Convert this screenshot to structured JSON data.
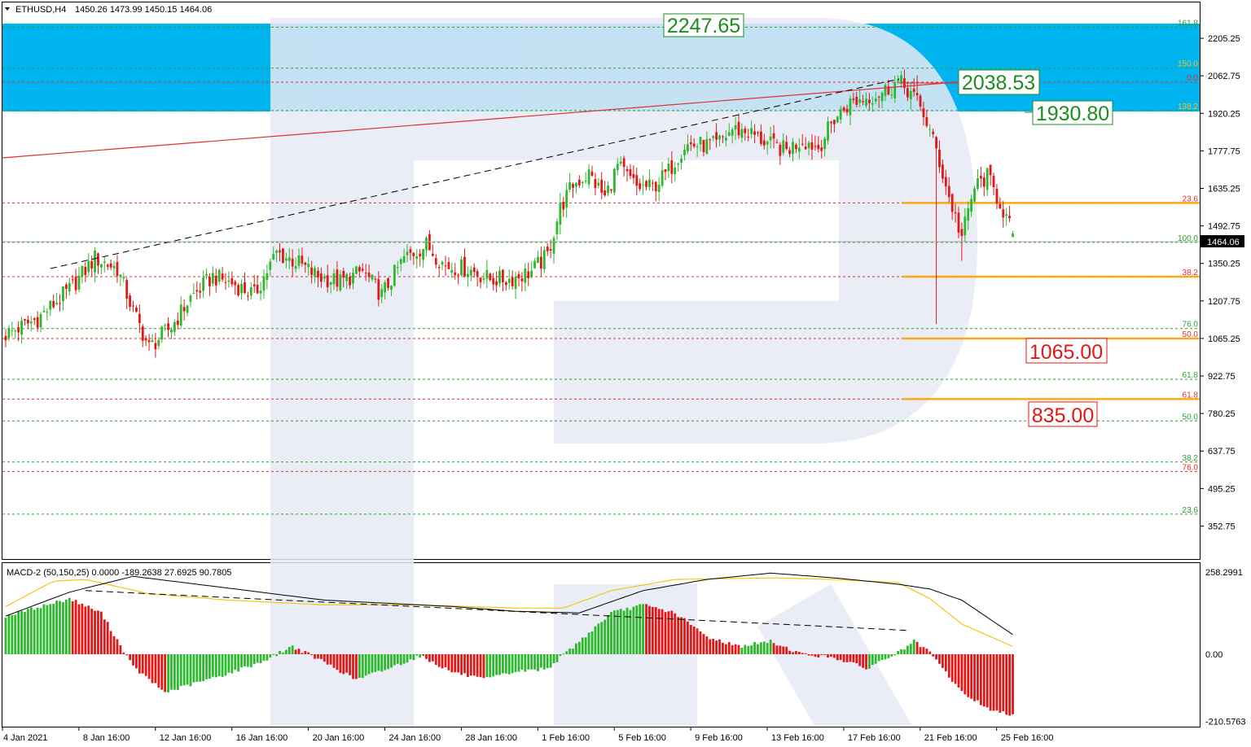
{
  "header": {
    "symbol": "ETHUSD,H4",
    "ohlc": "1450.26 1473.99 1450.15 1464.06"
  },
  "macd_header": "MACD-2 (50,150,25) 0.0000 -189.2638 27.6925 90.7805",
  "price_axis": [
    "2205.25",
    "2062.75",
    "1920.25",
    "1777.75",
    "1635.25",
    "1492.75",
    "1350.25",
    "1207.75",
    "1065.25",
    "922.75",
    "780.25",
    "637.75",
    "495.25",
    "352.75"
  ],
  "current_price": "1464.06",
  "macd_axis": [
    "258.2991",
    "0.00",
    "-210.5763"
  ],
  "time_axis": [
    "4 Jan 2021",
    "8 Jan 16:00",
    "12 Jan 16:00",
    "16 Jan 16:00",
    "20 Jan 16:00",
    "24 Jan 16:00",
    "28 Jan 16:00",
    "1 Feb 16:00",
    "5 Feb 16:00",
    "9 Feb 16:00",
    "13 Feb 16:00",
    "17 Feb 16:00",
    "21 Feb 16:00",
    "25 Feb 16:00"
  ],
  "callouts": {
    "target_high": "2247.65",
    "resistance_1": "2038.53",
    "resistance_2": "1930.80",
    "support_1": "1065.00",
    "support_2": "835.00"
  },
  "fib_labels": {
    "f1618": "161.8",
    "f150": "150.0",
    "f00": "0.0",
    "f1382": "138.2",
    "f236a": "23.6",
    "f1000": "100.0",
    "f382a": "38.2",
    "f760a": "76.0",
    "f500a": "50.0",
    "f618a": "61.8",
    "f618b": "61.8",
    "f500b": "50.0",
    "f382b": "38.2",
    "f760b": "76.0",
    "f236b": "23.6"
  },
  "colors": {
    "zone": "#00b4f0",
    "bull": "#2db82d",
    "bear": "#e01818",
    "green_label": "#1e8c1e",
    "red_label": "#e01818",
    "orange": "#ffa500",
    "signal": "#f5c518"
  },
  "chart_data": {
    "type": "candlestick",
    "instrument": "ETHUSD",
    "timeframe": "H4",
    "ylim": [
      280,
      2300
    ],
    "zone": [
      1930.8,
      2247.65
    ],
    "fib_levels_green": [
      {
        "label": "161.8",
        "price": 2247.65
      },
      {
        "label": "150.0",
        "price": 2092
      },
      {
        "label": "138.2",
        "price": 1930.8
      },
      {
        "label": "100.0",
        "price": 1430
      },
      {
        "label": "76.0",
        "price": 1103
      },
      {
        "label": "61.8",
        "price": 910
      },
      {
        "label": "50.0",
        "price": 752
      },
      {
        "label": "38.2",
        "price": 596
      },
      {
        "label": "23.6",
        "price": 398
      }
    ],
    "fib_levels_red": [
      {
        "label": "0.0",
        "price": 2038.53
      },
      {
        "label": "23.6",
        "price": 1580
      },
      {
        "label": "38.2",
        "price": 1300
      },
      {
        "label": "50.0",
        "price": 1065
      },
      {
        "label": "61.8",
        "price": 835
      },
      {
        "label": "76.0",
        "price": 560
      }
    ],
    "close_path": [
      [
        0,
        1080
      ],
      [
        10,
        1140
      ],
      [
        20,
        1250
      ],
      [
        28,
        1370
      ],
      [
        35,
        1330
      ],
      [
        40,
        1170
      ],
      [
        45,
        1030
      ],
      [
        52,
        1110
      ],
      [
        58,
        1220
      ],
      [
        65,
        1300
      ],
      [
        72,
        1270
      ],
      [
        78,
        1230
      ],
      [
        85,
        1390
      ],
      [
        92,
        1350
      ],
      [
        98,
        1300
      ],
      [
        105,
        1280
      ],
      [
        112,
        1320
      ],
      [
        118,
        1230
      ],
      [
        125,
        1370
      ],
      [
        132,
        1420
      ],
      [
        138,
        1340
      ],
      [
        145,
        1330
      ],
      [
        152,
        1290
      ],
      [
        158,
        1290
      ],
      [
        165,
        1320
      ],
      [
        170,
        1380
      ],
      [
        174,
        1560
      ],
      [
        178,
        1650
      ],
      [
        183,
        1690
      ],
      [
        188,
        1600
      ],
      [
        192,
        1720
      ],
      [
        198,
        1640
      ],
      [
        203,
        1640
      ],
      [
        208,
        1700
      ],
      [
        213,
        1800
      ],
      [
        218,
        1800
      ],
      [
        223,
        1800
      ],
      [
        228,
        1860
      ],
      [
        233,
        1850
      ],
      [
        240,
        1800
      ],
      [
        245,
        1780
      ],
      [
        250,
        1820
      ],
      [
        255,
        1790
      ],
      [
        260,
        1900
      ],
      [
        265,
        1960
      ],
      [
        270,
        1980
      ],
      [
        275,
        2000
      ],
      [
        280,
        2040
      ],
      [
        284,
        2000
      ],
      [
        288,
        1920
      ],
      [
        292,
        1780
      ],
      [
        296,
        1600
      ],
      [
        300,
        1450
      ],
      [
        304,
        1640
      ],
      [
        308,
        1680
      ],
      [
        312,
        1580
      ],
      [
        316,
        1464
      ]
    ]
  },
  "macd_data": {
    "ylim": [
      -210.5763,
      258.2991
    ],
    "hist_path": [
      [
        0,
        120
      ],
      [
        20,
        175
      ],
      [
        30,
        130
      ],
      [
        40,
        -40
      ],
      [
        50,
        -120
      ],
      [
        60,
        -90
      ],
      [
        70,
        -60
      ],
      [
        80,
        -25
      ],
      [
        90,
        25
      ],
      [
        100,
        -25
      ],
      [
        110,
        -80
      ],
      [
        120,
        -45
      ],
      [
        130,
        -5
      ],
      [
        140,
        -55
      ],
      [
        150,
        -80
      ],
      [
        160,
        -55
      ],
      [
        170,
        -45
      ],
      [
        180,
        40
      ],
      [
        190,
        130
      ],
      [
        200,
        155
      ],
      [
        210,
        130
      ],
      [
        220,
        55
      ],
      [
        230,
        25
      ],
      [
        240,
        40
      ],
      [
        250,
        0
      ],
      [
        260,
        -10
      ],
      [
        270,
        -45
      ],
      [
        280,
        5
      ],
      [
        285,
        40
      ],
      [
        290,
        5
      ],
      [
        300,
        -120
      ],
      [
        310,
        -180
      ],
      [
        317,
        -190
      ]
    ],
    "macd_path": [
      [
        0,
        120
      ],
      [
        20,
        195
      ],
      [
        40,
        245
      ],
      [
        60,
        220
      ],
      [
        80,
        195
      ],
      [
        100,
        170
      ],
      [
        120,
        160
      ],
      [
        140,
        150
      ],
      [
        160,
        135
      ],
      [
        180,
        130
      ],
      [
        200,
        200
      ],
      [
        220,
        235
      ],
      [
        240,
        255
      ],
      [
        260,
        240
      ],
      [
        280,
        220
      ],
      [
        290,
        205
      ],
      [
        300,
        170
      ],
      [
        317,
        55
      ]
    ],
    "signal_path": [
      [
        0,
        150
      ],
      [
        15,
        230
      ],
      [
        25,
        235
      ],
      [
        45,
        190
      ],
      [
        70,
        170
      ],
      [
        100,
        155
      ],
      [
        130,
        155
      ],
      [
        160,
        145
      ],
      [
        175,
        145
      ],
      [
        190,
        200
      ],
      [
        210,
        235
      ],
      [
        240,
        240
      ],
      [
        260,
        235
      ],
      [
        280,
        225
      ],
      [
        290,
        175
      ],
      [
        300,
        95
      ],
      [
        317,
        20
      ]
    ],
    "trend_line": [
      [
        25,
        200
      ],
      [
        283,
        75
      ]
    ]
  }
}
